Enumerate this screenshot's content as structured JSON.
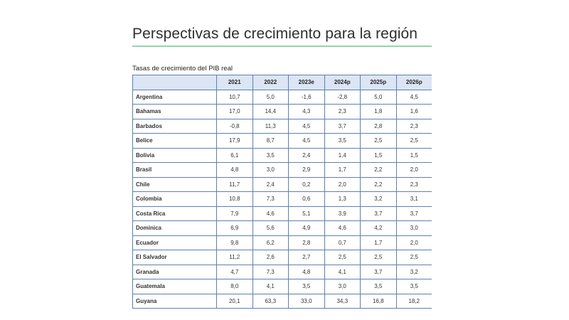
{
  "page": {
    "title": "Perspectivas de crecimiento para la región",
    "table_caption": "Tasas de crecimiento del PIB real"
  },
  "table": {
    "columns": [
      "2021",
      "2022",
      "2023e",
      "2024p",
      "2025p",
      "2026p"
    ],
    "rows": [
      {
        "country": "Argentina",
        "values": [
          "10,7",
          "5,0",
          "-1,6",
          "-2,8",
          "5,0",
          "4,5"
        ]
      },
      {
        "country": "Bahamas",
        "values": [
          "17,0",
          "14,4",
          "4,3",
          "2,3",
          "1,8",
          "1,6"
        ]
      },
      {
        "country": "Barbados",
        "values": [
          "-0,8",
          "11,3",
          "4,5",
          "3,7",
          "2,8",
          "2,3"
        ]
      },
      {
        "country": "Belice",
        "values": [
          "17,9",
          "8,7",
          "4,5",
          "3,5",
          "2,5",
          "2,5"
        ]
      },
      {
        "country": "Bolivia",
        "values": [
          "6,1",
          "3,5",
          "2,4",
          "1,4",
          "1,5",
          "1,5"
        ]
      },
      {
        "country": "Brasil",
        "values": [
          "4,8",
          "3,0",
          "2,9",
          "1,7",
          "2,2",
          "2,0"
        ]
      },
      {
        "country": "Chile",
        "values": [
          "11,7",
          "2,4",
          "0,2",
          "2,0",
          "2,2",
          "2,3"
        ]
      },
      {
        "country": "Colombia",
        "values": [
          "10,8",
          "7,3",
          "0,6",
          "1,3",
          "3,2",
          "3,1"
        ]
      },
      {
        "country": "Costa Rica",
        "values": [
          "7,9",
          "4,6",
          "5,1",
          "3,9",
          "3,7",
          "3,7"
        ]
      },
      {
        "country": "Dominica",
        "values": [
          "6,9",
          "5,6",
          "4,9",
          "4,6",
          "4,2",
          "3,0"
        ]
      },
      {
        "country": "Ecuador",
        "values": [
          "9,8",
          "6,2",
          "2,8",
          "0,7",
          "1,7",
          "2,0"
        ]
      },
      {
        "country": "El Salvador",
        "values": [
          "11,2",
          "2,6",
          "2,7",
          "2,5",
          "2,5",
          "2,5"
        ]
      },
      {
        "country": "Granada",
        "values": [
          "4,7",
          "7,3",
          "4,8",
          "4,1",
          "3,7",
          "3,2"
        ]
      },
      {
        "country": "Guatemala",
        "values": [
          "8,0",
          "4,1",
          "3,5",
          "3,0",
          "3,5",
          "3,5"
        ]
      },
      {
        "country": "Guyana",
        "values": [
          "20,1",
          "63,3",
          "33,0",
          "34,3",
          "16,8",
          "18,2"
        ]
      }
    ]
  }
}
